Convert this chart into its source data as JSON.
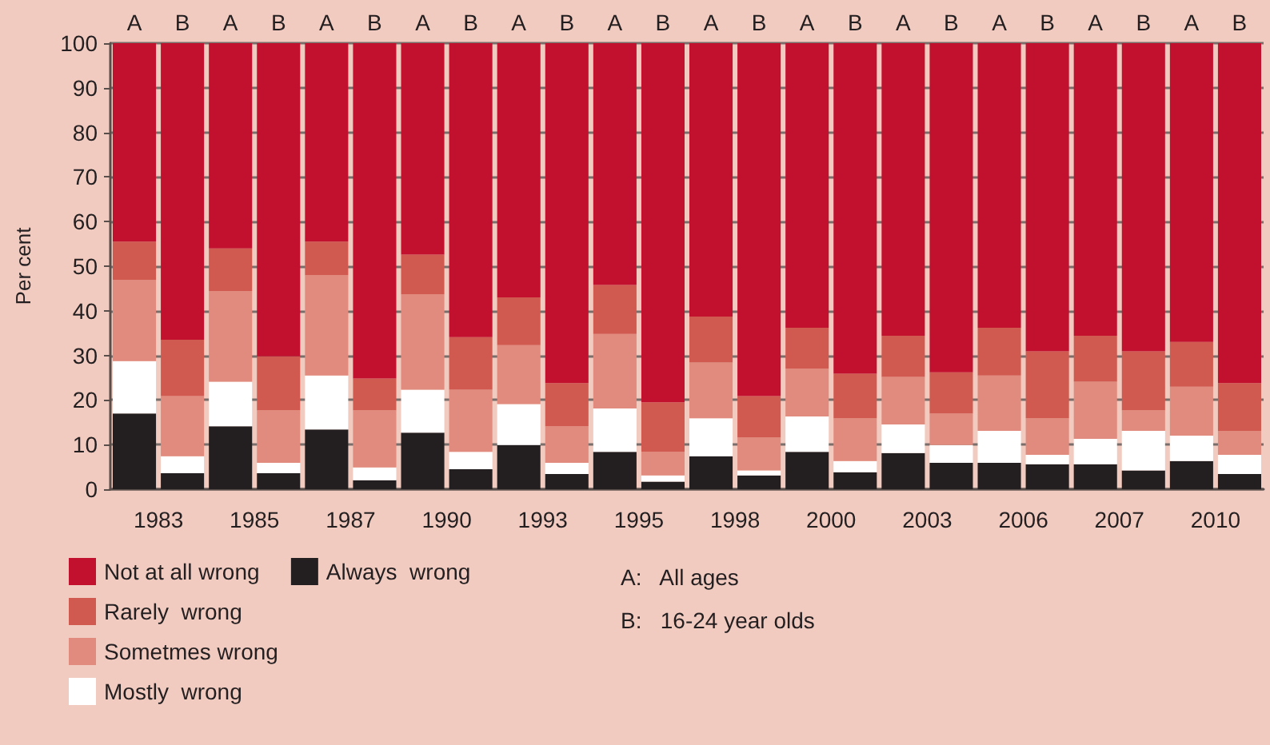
{
  "chart_data": {
    "type": "bar",
    "stacked": true,
    "ylabel": "Per cent",
    "categories": [
      "A",
      "B",
      "A",
      "B",
      "A",
      "B",
      "A",
      "B",
      "A",
      "B",
      "A",
      "B",
      "A",
      "B",
      "A",
      "B",
      "A",
      "B",
      "A",
      "B",
      "A",
      "B",
      "A",
      "B"
    ],
    "series": [
      {
        "name": "Always  wrong",
        "color": "#231f20",
        "values": [
          17,
          3.6,
          14.1,
          3.6,
          13.4,
          2,
          12.7,
          4.5,
          9.9,
          3.4,
          8.4,
          1.7,
          7.4,
          3.1,
          8.4,
          3.8,
          8.1,
          5.9,
          5.9,
          5.6,
          5.6,
          4.2,
          6.3,
          3.4
        ]
      },
      {
        "name": "Mostly  wrong",
        "color": "#ffffff",
        "values": [
          11.7,
          3.8,
          10,
          2.3,
          12.1,
          2.9,
          9.6,
          3.9,
          9.2,
          2.5,
          9.7,
          1.4,
          8.5,
          1.1,
          7.9,
          2.5,
          6.4,
          4,
          7.2,
          2.1,
          5.7,
          8.9,
          5.7,
          4.3
        ]
      },
      {
        "name": "Sometmes wrong",
        "color": "#e08b7d",
        "values": [
          18.2,
          13.5,
          20.3,
          11.8,
          22.5,
          12.8,
          21.4,
          13.9,
          13.2,
          8.2,
          16.7,
          5.3,
          12.5,
          7.4,
          10.7,
          9.6,
          10.7,
          7.1,
          12.4,
          8.2,
          12.8,
          4.6,
          11,
          5.4
        ]
      },
      {
        "name": "Rarely  wrong",
        "color": "#d05a50",
        "values": [
          8.6,
          12.6,
          9.6,
          12.1,
          7.5,
          7.1,
          8.9,
          11.8,
          10.7,
          9.7,
          11,
          11.1,
          10.3,
          9.3,
          9.2,
          10,
          9.2,
          9.2,
          10.7,
          15,
          10.3,
          13.2,
          10,
          10.7
        ]
      },
      {
        "name": "Not at all wrong",
        "color": "#c1112f",
        "values": [
          44.5,
          66.5,
          46,
          70.2,
          44.5,
          75.2,
          47.4,
          65.9,
          57,
          76.2,
          54.2,
          80.5,
          61.3,
          79.1,
          63.8,
          74.1,
          65.6,
          73.8,
          63.8,
          69.1,
          65.6,
          69.1,
          67,
          76.2
        ]
      }
    ],
    "ylim": [
      0,
      100
    ],
    "yticks": [
      0,
      10,
      20,
      30,
      40,
      50,
      60,
      70,
      80,
      90,
      100
    ],
    "grid": "y",
    "legend": "bottom left",
    "annotations": [
      "1983",
      "1985",
      "1987",
      "1990",
      "1993",
      "1995",
      "1998",
      "2000",
      "2003",
      "2006",
      "2007",
      "2010",
      "A:   All ages",
      "B:   16-24 year olds"
    ]
  }
}
